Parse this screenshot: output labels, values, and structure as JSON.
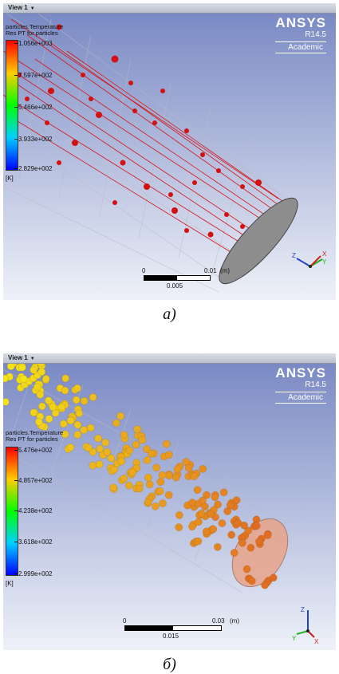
{
  "view_a": {
    "view_label": "View 1",
    "brand": {
      "name": "ANSYS",
      "version": "R14.5",
      "tag": "Academic"
    },
    "legend": {
      "title1": "particles.Temperature",
      "title2": "Res PT for particles",
      "ticks": [
        "1.056e+003",
        "7.597e+002",
        "5.466e+002",
        "3.933e+002",
        "2.829e+002"
      ],
      "unit": "[K]"
    },
    "scale": {
      "zero": "0",
      "mid": "0.005",
      "end": "0.01",
      "unit": "(m)"
    },
    "axes": {
      "x": "X",
      "y": "Y",
      "z": "Z"
    },
    "caption": "a)"
  },
  "view_b": {
    "view_label": "View 1",
    "brand": {
      "name": "ANSYS",
      "version": "R14.5",
      "tag": "Academic"
    },
    "legend": {
      "title1": "particles.Temperature",
      "title2": "Res PT for particles",
      "ticks": [
        "5.476e+002",
        "4.857e+002",
        "4.238e+002",
        "3.618e+002",
        "2.999e+002"
      ],
      "unit": "[K]"
    },
    "scale": {
      "zero": "0",
      "mid": "0.015",
      "end": "0.03",
      "unit": "(m)"
    },
    "axes": {
      "x": "X",
      "y": "Y",
      "z": "Z"
    },
    "caption": "б)"
  },
  "colors": {
    "bg_top": "#7f8fc4",
    "bg_bottom": "#e6eaf5",
    "particle_a": "#d41111",
    "particle_b_hot": "#e07a10",
    "particle_b_cold": "#f2e21a"
  }
}
